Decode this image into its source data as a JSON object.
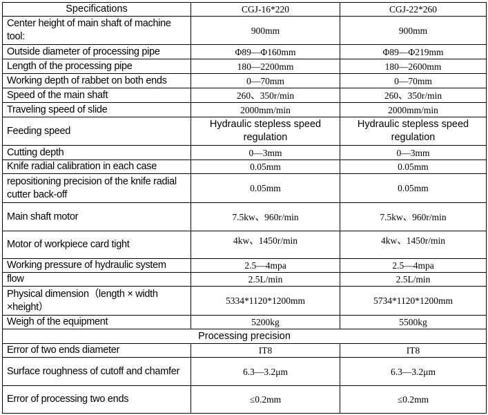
{
  "header": {
    "spec": "Specifications",
    "model1": "CGJ-16*220",
    "model2": "CGJ-22*260"
  },
  "rows": [
    {
      "label": "Center height of main shaft of machine tool:",
      "v1": "900mm",
      "v2": "900mm"
    },
    {
      "label": "Outside diameter of processing pipe",
      "v1": "Φ89—Φ160mm",
      "v2": "Φ89—Φ219mm"
    },
    {
      "label": "Length of the processing pipe",
      "v1": "180—2200mm",
      "v2": "180—2600mm"
    },
    {
      "label": "Working depth of rabbet on both ends",
      "v1": "0—70mm",
      "v2": "0—70mm"
    },
    {
      "label": "Speed of the main shaft",
      "v1": "260、350r/min",
      "v2": "260、350r/min"
    },
    {
      "label": "Traveling speed of slide",
      "v1": "2000mm/min",
      "v2": "2000mm/min"
    },
    {
      "label": "Feeding speed",
      "v1": "Hydraulic stepless speed regulation",
      "v2": "Hydraulic stepless speed regulation"
    },
    {
      "label": "Cutting depth",
      "v1": "0—3mm",
      "v2": "0—3mm"
    },
    {
      "label": "Knife radial calibration in each case",
      "v1": "0.05mm",
      "v2": "0.05mm"
    },
    {
      "label": "repositioning precision of the knife radial cutter back-off",
      "v1": "0.05mm",
      "v2": "0.05mm"
    },
    {
      "label": "Main shaft motor",
      "v1": "7.5kw、960r/min",
      "v2": "7.5kw、960r/min"
    },
    {
      "label": "Motor of workpiece card tight",
      "v1": "4kw、1450r/min",
      "v2": "4kw、1450r/min"
    },
    {
      "label": "Working pressure of hydraulic system",
      "v1": "2.5—4mpa",
      "v2": "2.5—4mpa"
    },
    {
      "label": "flow",
      "v1": "2.5L/min",
      "v2": "2.5L/min"
    },
    {
      "label": "Physical dimension（length × width ×height）",
      "v1": "5334*1120*1200mm",
      "v2": "5734*1120*1200mm"
    },
    {
      "label": "Weigh of the equipment",
      "v1": "5200kg",
      "v2": "5500kg"
    }
  ],
  "section": "Processing precision",
  "precision_rows": [
    {
      "label_a": "Error of two ends",
      "label_b": " diameter",
      "v1": "IT8",
      "v2": "IT8"
    },
    {
      "label": "Surface roughness of cutoff and chamfer",
      "v1": "6.3—3.2μm",
      "v2": "6.3—3.2μm"
    },
    {
      "label": "Error of processing two ends",
      "v1": "≤0.2mm",
      "v2": "≤0.2mm"
    }
  ]
}
